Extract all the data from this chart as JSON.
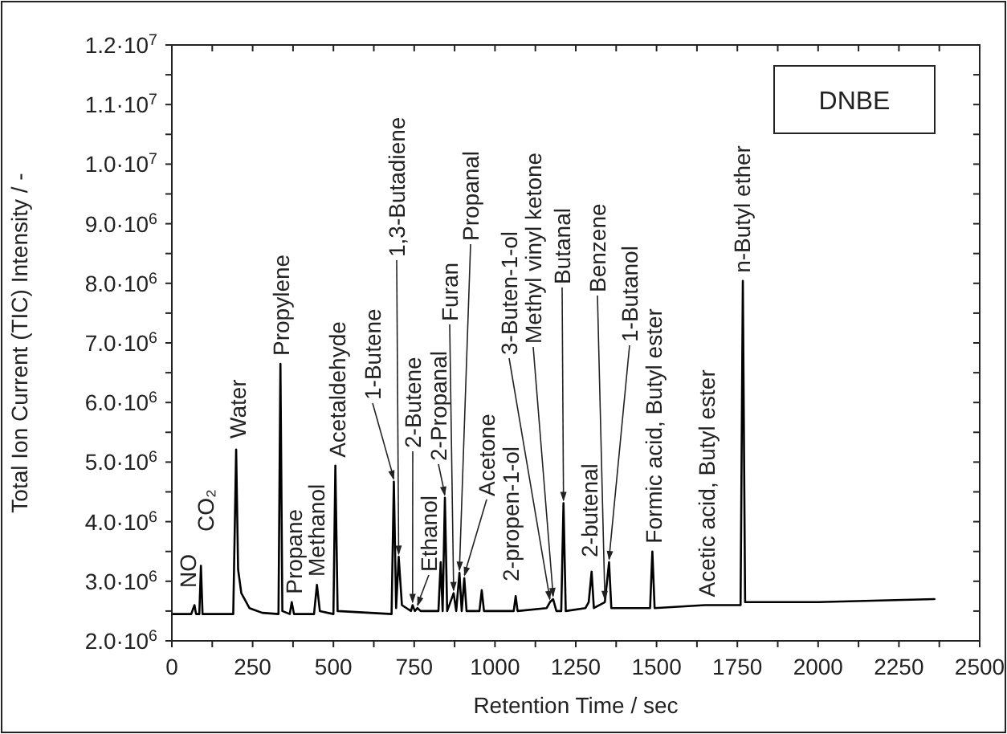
{
  "chart_data": {
    "type": "line",
    "xlabel": "Retention Time / sec",
    "ylabel": "Total Ion Current (TIC) Intensity / -",
    "xlim": [
      0,
      2500
    ],
    "ylim": [
      2000000,
      12000000
    ],
    "xticks": [
      0,
      {
        "value": 125,
        "label": null
      },
      250,
      {
        "value": 375,
        "label": null
      },
      500,
      {
        "value": 625,
        "label": null
      },
      750,
      {
        "value": 875,
        "label": null
      },
      1000,
      {
        "value": 1125,
        "label": null
      },
      1250,
      {
        "value": 1375,
        "label": null
      },
      1500,
      {
        "value": 1625,
        "label": null
      },
      1750,
      {
        "value": 1875,
        "label": null
      },
      2000,
      {
        "value": 2125,
        "label": null
      },
      2250,
      {
        "value": 2375,
        "label": null
      },
      2500
    ],
    "yticks": [
      {
        "value": 2000000,
        "label": "2.0·10$^{6}$"
      },
      {
        "value": 2500000,
        "label": null
      },
      {
        "value": 3000000,
        "label": "3.0·10$^{6}$"
      },
      {
        "value": 3500000,
        "label": null
      },
      {
        "value": 4000000,
        "label": "4.0·10$^{6}$"
      },
      {
        "value": 4500000,
        "label": null
      },
      {
        "value": 5000000,
        "label": "5.0·10$^{6}$"
      },
      {
        "value": 5500000,
        "label": null
      },
      {
        "value": 6000000,
        "label": "6.0·10$^{6}$"
      },
      {
        "value": 6500000,
        "label": null
      },
      {
        "value": 7000000,
        "label": "7.0·10$^{6}$"
      },
      {
        "value": 7500000,
        "label": null
      },
      {
        "value": 8000000,
        "label": "8.0·10$^{6}$"
      },
      {
        "value": 8500000,
        "label": null
      },
      {
        "value": 9000000,
        "label": "9.0·10$^{6}$"
      },
      {
        "value": 9500000,
        "label": null
      },
      {
        "value": 10000000,
        "label": "1.0·10$^{7}$"
      },
      {
        "value": 10500000,
        "label": null
      },
      {
        "value": 11000000,
        "label": "1.1·10$^{7}$"
      },
      {
        "value": 11500000,
        "label": null
      },
      {
        "value": 12000000,
        "label": "1.2·10$^{7}$"
      }
    ],
    "grid": false,
    "marker": "none",
    "line_style": "solid",
    "series": [
      {
        "color": "#000000",
        "x": [
          0,
          60,
          70,
          75,
          85,
          90,
          95,
          190,
          199,
          205,
          215,
          240,
          280,
          330,
          336,
          342,
          365,
          371,
          378,
          440,
          449,
          458,
          500,
          506,
          513,
          680,
          687,
          694,
          702,
          712,
          740,
          745,
          752,
          760,
          770,
          825,
          832,
          838,
          845,
          852,
          872,
          880,
          890,
          897,
          905,
          912,
          952,
          959,
          966,
          1058,
          1064,
          1070,
          1160,
          1170,
          1180,
          1190,
          1205,
          1212,
          1219,
          1280,
          1290,
          1299,
          1306,
          1340,
          1353,
          1360,
          1480,
          1487,
          1494,
          1650,
          1760,
          1767,
          1774,
          2000,
          2360
        ],
        "values": [
          2450000,
          2450000,
          2600000,
          2450000,
          2450000,
          3260000,
          2450000,
          2450000,
          5210000,
          3200000,
          2800000,
          2550000,
          2470000,
          2450000,
          6650000,
          2500000,
          2450000,
          2650000,
          2450000,
          2450000,
          2940000,
          2500000,
          2450000,
          4940000,
          2500000,
          2450000,
          4670000,
          2550000,
          3410000,
          2600000,
          2500000,
          2600000,
          2500000,
          2550000,
          2500000,
          2500000,
          3320000,
          2500000,
          4400000,
          2500000,
          2800000,
          2500000,
          3140000,
          2500000,
          3050000,
          2500000,
          2500000,
          2850000,
          2500000,
          2500000,
          2750000,
          2500000,
          2550000,
          2650000,
          2700000,
          2500000,
          2500000,
          4310000,
          2500000,
          2550000,
          2650000,
          3160000,
          2550000,
          2650000,
          3320000,
          2550000,
          2550000,
          3500000,
          2550000,
          2600000,
          2600000,
          8040000,
          2650000,
          2650000,
          2700000
        ]
      }
    ],
    "annotations": [
      "DNBE",
      {
        "text": "NO",
        "x": 72,
        "y": 2600000
      },
      {
        "text": "CO₂",
        "x": 90,
        "y": 3260000
      },
      {
        "text": "Water",
        "x": 199,
        "y": 5210000
      },
      {
        "text": "Propylene",
        "x": 336,
        "y": 6650000
      },
      {
        "text": "Propane",
        "x": 371,
        "y": 2650000
      },
      {
        "text": "Methanol",
        "x": 449,
        "y": 2940000
      },
      {
        "text": "Acetaldehyde",
        "x": 506,
        "y": 4940000
      },
      {
        "text": "1-Butene",
        "x": 687,
        "y": 4670000
      },
      {
        "text": "1,3-Butadiene",
        "x": 702,
        "y": 3410000
      },
      {
        "text": "2-Butene",
        "x": 745,
        "y": 2600000
      },
      {
        "text": "Ethanol",
        "x": 760,
        "y": 2550000
      },
      {
        "text": "2-Propanal",
        "x": 845,
        "y": 4400000
      },
      {
        "text": "Furan",
        "x": 872,
        "y": 2800000
      },
      {
        "text": "Propanal",
        "x": 890,
        "y": 3140000
      },
      {
        "text": "Acetone",
        "x": 905,
        "y": 3050000
      },
      {
        "text": "2-propen-1-ol",
        "x": 1064,
        "y": 2750000
      },
      {
        "text": "3-Buten-1-ol",
        "x": 1170,
        "y": 2650000
      },
      {
        "text": "Methyl vinyl ketone",
        "x": 1180,
        "y": 2700000
      },
      {
        "text": "Butanal",
        "x": 1212,
        "y": 4310000
      },
      {
        "text": "2-butenal",
        "x": 1299,
        "y": 3160000
      },
      {
        "text": "Benzene",
        "x": 1340,
        "y": 2650000
      },
      {
        "text": "1-Butanol",
        "x": 1353,
        "y": 3320000
      },
      {
        "text": "Formic acid, Butyl ester",
        "x": 1487,
        "y": 3500000
      },
      {
        "text": "Acetic acid, Butyl ester",
        "x": 1650,
        "y": 2600000
      },
      {
        "text": "n-Butyl ether",
        "x": 1767,
        "y": 8040000
      }
    ]
  }
}
